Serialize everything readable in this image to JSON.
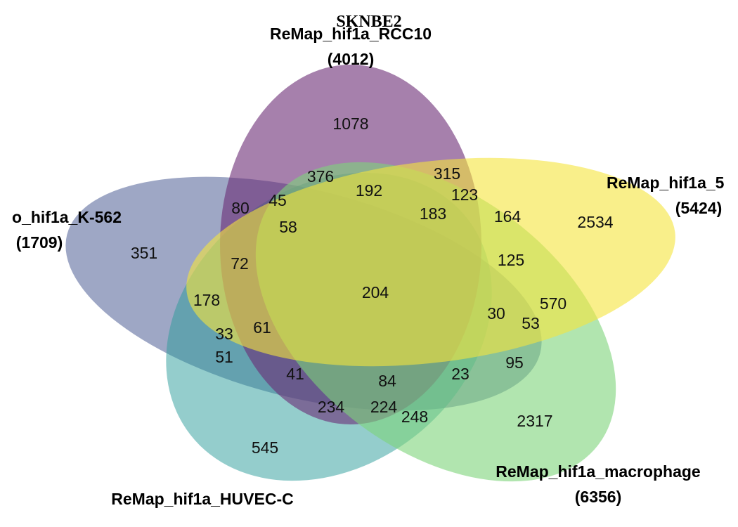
{
  "title": "SKNBE2",
  "sets": [
    {
      "id": "rcc10",
      "name": "ReMap_hif1a_RCC10",
      "count": "(4012)",
      "color": "#6a2c75"
    },
    {
      "id": "top5",
      "name": "ReMap_hif1a_5",
      "count": "(5424)",
      "color": "#f5e53c"
    },
    {
      "id": "macrophage",
      "name": "ReMap_hif1a_macrophage",
      "count": "(6356)",
      "color": "#7dd37a"
    },
    {
      "id": "huvec",
      "name": "ReMap_hif1a_HUVEC-C",
      "count": "",
      "color": "#2a9b99"
    },
    {
      "id": "k562",
      "name": "o_hif1a_K-562",
      "count": "(1709)",
      "color": "#4f5f95"
    }
  ],
  "regions": [
    {
      "id": "r-1078",
      "value": "1078"
    },
    {
      "id": "r-2534",
      "value": "2534"
    },
    {
      "id": "r-2317",
      "value": "2317"
    },
    {
      "id": "r-545",
      "value": "545"
    },
    {
      "id": "r-351",
      "value": "351"
    },
    {
      "id": "r-376",
      "value": "376"
    },
    {
      "id": "r-315",
      "value": "315"
    },
    {
      "id": "r-192",
      "value": "192"
    },
    {
      "id": "r-123",
      "value": "123"
    },
    {
      "id": "r-80",
      "value": "80"
    },
    {
      "id": "r-45",
      "value": "45"
    },
    {
      "id": "r-58",
      "value": "58"
    },
    {
      "id": "r-183",
      "value": "183"
    },
    {
      "id": "r-164",
      "value": "164"
    },
    {
      "id": "r-72",
      "value": "72"
    },
    {
      "id": "r-125",
      "value": "125"
    },
    {
      "id": "r-204",
      "value": "204"
    },
    {
      "id": "r-178",
      "value": "178"
    },
    {
      "id": "r-30",
      "value": "30"
    },
    {
      "id": "r-570",
      "value": "570"
    },
    {
      "id": "r-61",
      "value": "61"
    },
    {
      "id": "r-53",
      "value": "53"
    },
    {
      "id": "r-33",
      "value": "33"
    },
    {
      "id": "r-51",
      "value": "51"
    },
    {
      "id": "r-95",
      "value": "95"
    },
    {
      "id": "r-41",
      "value": "41"
    },
    {
      "id": "r-84",
      "value": "84"
    },
    {
      "id": "r-23",
      "value": "23"
    },
    {
      "id": "r-234",
      "value": "234"
    },
    {
      "id": "r-224",
      "value": "224"
    },
    {
      "id": "r-248",
      "value": "248"
    }
  ]
}
